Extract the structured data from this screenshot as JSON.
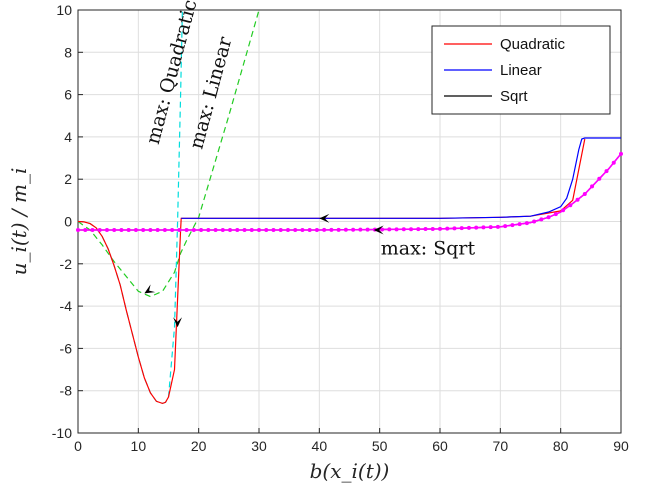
{
  "chart_data": {
    "type": "line",
    "title": "",
    "xlabel": "b(x_i(t))",
    "ylabel": "u_i(t) / m_i",
    "xlim": [
      0,
      90
    ],
    "ylim": [
      -10,
      10
    ],
    "xticks": [
      "0",
      "10",
      "20",
      "30",
      "40",
      "50",
      "60",
      "70",
      "80",
      "90"
    ],
    "yticks": [
      "-10",
      "-8",
      "-6",
      "-4",
      "-2",
      "0",
      "2",
      "4",
      "6",
      "8",
      "10"
    ],
    "grid": true,
    "legend": {
      "placement": "top-right",
      "entries": [
        {
          "label": "Quadratic",
          "color": "#ff0000"
        },
        {
          "label": "Linear",
          "color": "#0000ff"
        },
        {
          "label": "Sqrt",
          "color": "#000000"
        }
      ]
    },
    "series": [
      {
        "name": "Quadratic",
        "color": "#ff0000",
        "x": [
          0,
          1,
          2,
          3,
          4,
          5,
          6,
          7,
          8,
          9,
          10,
          11,
          12,
          13,
          14,
          14.5,
          15,
          16,
          17,
          17.1,
          18,
          20,
          30,
          40,
          50,
          60,
          70,
          75,
          80,
          82,
          84
        ],
        "y": [
          0,
          -0.02,
          -0.1,
          -0.3,
          -0.7,
          -1.3,
          -2.1,
          -3.0,
          -4.2,
          -5.3,
          -6.4,
          -7.4,
          -8.1,
          -8.5,
          -8.6,
          -8.55,
          -8.3,
          -7.0,
          -0.4,
          0.15,
          0.15,
          0.15,
          0.15,
          0.15,
          0.15,
          0.15,
          0.2,
          0.25,
          0.5,
          1.0,
          3.9
        ]
      },
      {
        "name": "Linear",
        "color": "#0000ff",
        "x": [
          17.1,
          20,
          30,
          40,
          50,
          60,
          70,
          75,
          78,
          80,
          81,
          82,
          83,
          83.5,
          84,
          86,
          88,
          90
        ],
        "y": [
          0.15,
          0.15,
          0.15,
          0.15,
          0.15,
          0.15,
          0.2,
          0.25,
          0.45,
          0.7,
          1.1,
          2.0,
          3.4,
          3.9,
          3.95,
          3.95,
          3.95,
          3.95
        ]
      },
      {
        "name": "Sqrt",
        "color": "#000000",
        "x": [
          0,
          10,
          20,
          30,
          40,
          50,
          60,
          70,
          75,
          78,
          80,
          82,
          84,
          86,
          88,
          90
        ],
        "y": [
          -0.4,
          -0.4,
          -0.4,
          -0.4,
          -0.4,
          -0.38,
          -0.35,
          -0.25,
          -0.05,
          0.2,
          0.45,
          0.85,
          1.3,
          1.9,
          2.5,
          3.2
        ]
      },
      {
        "name": "",
        "color": "#00dddd",
        "dashed": true,
        "x": [
          0,
          1,
          2,
          3,
          4,
          5,
          6,
          7,
          8,
          9,
          10,
          11,
          12,
          13,
          14,
          14.5,
          15,
          16,
          16.5,
          17,
          17.3
        ],
        "y": [
          0,
          -0.02,
          -0.1,
          -0.3,
          -0.7,
          -1.3,
          -2.1,
          -3.0,
          -4.2,
          -5.3,
          -6.4,
          -7.4,
          -8.1,
          -8.5,
          -8.6,
          -8.55,
          -8.3,
          -5.0,
          0,
          6,
          10
        ]
      },
      {
        "name": "",
        "color": "#22cc22",
        "dashed": true,
        "x": [
          0,
          2,
          4,
          6,
          8,
          10,
          12,
          14,
          16,
          17,
          18,
          20,
          25,
          30
        ],
        "y": [
          0,
          -0.4,
          -1.1,
          -1.9,
          -2.6,
          -3.3,
          -3.55,
          -3.3,
          -2.4,
          -1.5,
          -0.9,
          0.2,
          5,
          10
        ]
      },
      {
        "name": "",
        "color": "#ff00ff",
        "markers": true,
        "x": [
          0,
          10,
          20,
          30,
          40,
          50,
          60,
          70,
          75,
          78,
          80,
          82,
          84,
          86,
          88,
          90
        ],
        "y": [
          -0.4,
          -0.4,
          -0.4,
          -0.4,
          -0.4,
          -0.38,
          -0.35,
          -0.25,
          -0.05,
          0.2,
          0.45,
          0.85,
          1.3,
          1.9,
          2.5,
          3.2
        ]
      }
    ],
    "annotations": [
      {
        "text": "max: Quadratic",
        "x": 16.5,
        "y": 7
      },
      {
        "text": "max: Linear",
        "x": 23,
        "y": 6
      },
      {
        "text": "max: Sqrt",
        "x": 58,
        "y": -1
      }
    ],
    "arrows": [
      {
        "x": 40,
        "y": 0.15
      },
      {
        "x": 49,
        "y": -0.4
      },
      {
        "x": 11,
        "y": -3.4
      },
      {
        "x": 16.5,
        "y": -5
      }
    ]
  }
}
